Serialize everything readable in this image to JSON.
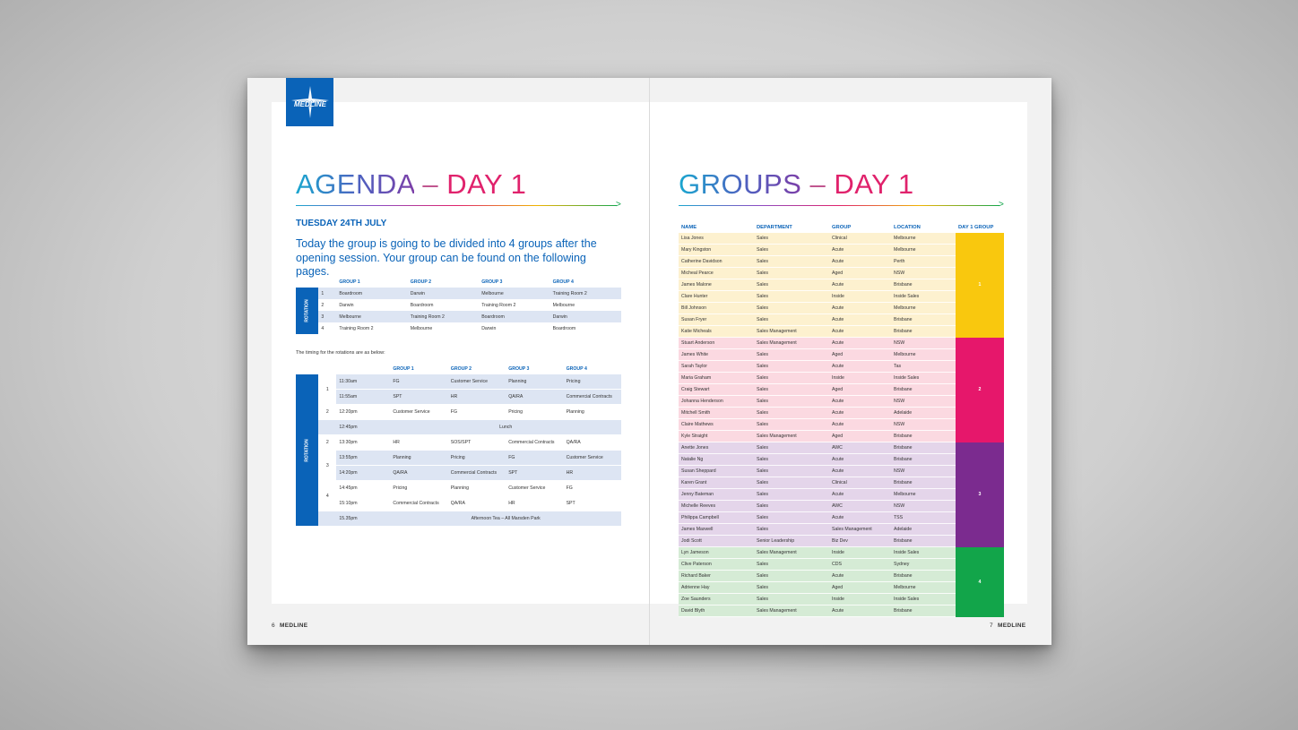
{
  "logo": {
    "text": "MEDLINE",
    "icon": "medline-star-icon",
    "color": "#0a63b8"
  },
  "left": {
    "title_a": "AGENDA",
    "title_sep": " – ",
    "title_b": "DAY 1",
    "date": "TUESDAY 24TH JULY",
    "intro": "Today the group is going to be divided into 4 groups after the opening session. Your group can be found on the following pages.",
    "rotation_label": "ROTATION",
    "rotation_table": {
      "headers": [
        "GROUP 1",
        "GROUP 2",
        "GROUP 3",
        "GROUP 4"
      ],
      "rows": [
        {
          "n": "1",
          "cells": [
            "Boardroom",
            "Darwin",
            "Melbourne",
            "Training Room 2"
          ]
        },
        {
          "n": "2",
          "cells": [
            "Darwin",
            "Boardroom",
            "Training Room 2",
            "Melbourne"
          ]
        },
        {
          "n": "3",
          "cells": [
            "Melbourne",
            "Training Room 2",
            "Boardroom",
            "Darwin"
          ]
        },
        {
          "n": "4",
          "cells": [
            "Training Room 2",
            "Melbourne",
            "Darwin",
            "Boardroom"
          ]
        }
      ]
    },
    "timing_note": "The timing for the rotations are as below:",
    "timing_table": {
      "headers": [
        "GROUP 1",
        "GROUP 2",
        "GROUP 3",
        "GROUP 4"
      ],
      "rows": [
        {
          "n": "1",
          "time": "11:30am",
          "cells": [
            "FG",
            "Customer Service",
            "Planning",
            "Pricing"
          ]
        },
        {
          "n": "",
          "time": "11:55am",
          "cells": [
            "SPT",
            "HR",
            "QA/RA",
            "Commercial Contracts"
          ]
        },
        {
          "n": "2",
          "time": "12:20pm",
          "cells": [
            "Customer Service",
            "FG",
            "Pricing",
            "Planning"
          ]
        },
        {
          "n": "",
          "time": "12:45pm",
          "span": "Lunch"
        },
        {
          "n": "2",
          "time": "13:30pm",
          "cells": [
            "HR",
            "SOS/SPT",
            "Commercial Contracts",
            "QA/RA"
          ]
        },
        {
          "n": "3",
          "time": "13:55pm",
          "cells": [
            "Planning",
            "Pricing",
            "FG",
            "Customer Service"
          ]
        },
        {
          "n": "",
          "time": "14:20pm",
          "cells": [
            "QA/RA",
            "Commercial Contracts",
            "SPT",
            "HR"
          ]
        },
        {
          "n": "4",
          "time": "14:45pm",
          "cells": [
            "Pricing",
            "Planning",
            "Customer Service",
            "FG"
          ]
        },
        {
          "n": "",
          "time": "15:10pm",
          "cells": [
            "Commercial Contracts",
            "QA/RA",
            "HR",
            "SPT"
          ]
        },
        {
          "n": "",
          "time": "15.35pm",
          "span": "Afternoon Tea – All Marsden Park"
        }
      ]
    },
    "footer_page": "6",
    "footer_brand": "MEDLINE"
  },
  "right": {
    "title_a": "GROUPS",
    "title_sep": " – ",
    "title_b": "DAY 1",
    "headers": [
      "NAME",
      "DEPARTMENT",
      "GROUP",
      "LOCATION",
      "DAY 1 GROUP"
    ],
    "groups": [
      {
        "label": "1",
        "color": "#f9c80e",
        "bg": "#fdf1cf",
        "members": [
          [
            "Lisa Jones",
            "Sales",
            "Clinical",
            "Melbourne"
          ],
          [
            "Mary Kingston",
            "Sales",
            "Acute",
            "Melbourne"
          ],
          [
            "Catherine Davidson",
            "Sales",
            "Acute",
            "Perth"
          ],
          [
            "Micheal Pearce",
            "Sales",
            "Aged",
            "NSW"
          ],
          [
            "James Malone",
            "Sales",
            "Acute",
            "Brisbane"
          ],
          [
            "Clare Hunter",
            "Sales",
            "Inside",
            "Inside Sales"
          ],
          [
            "Bill Johnson",
            "Sales",
            "Acute",
            "Melbourne"
          ],
          [
            "Susan Fryer",
            "Sales",
            "Acute",
            "Brisbane"
          ],
          [
            "Katie Micheals",
            "Sales Management",
            "Acute",
            "Brisbane"
          ]
        ]
      },
      {
        "label": "2",
        "color": "#e6176b",
        "bg": "#fbd9e1",
        "members": [
          [
            "Stuart Anderson",
            "Sales Management",
            "Acute",
            "NSW"
          ],
          [
            "James White",
            "Sales",
            "Aged",
            "Melbourne"
          ],
          [
            "Sarah Taylor",
            "Sales",
            "Acute",
            "Tas"
          ],
          [
            "Maria Graham",
            "Sales",
            "Inside",
            "Inside Sales"
          ],
          [
            "Craig Stewart",
            "Sales",
            "Aged",
            "Brisbane"
          ],
          [
            "Johanna Henderson",
            "Sales",
            "Acute",
            "NSW"
          ],
          [
            "Mitchell Smith",
            "Sales",
            "Acute",
            "Adelaide"
          ],
          [
            "Claire Mathews",
            "Sales",
            "Acute",
            "NSW"
          ],
          [
            "Kyle Straight",
            "Sales Management",
            "Aged",
            "Brisbane"
          ]
        ]
      },
      {
        "label": "3",
        "color": "#7b2b8f",
        "bg": "#e4d5ea",
        "members": [
          [
            "Anette Jones",
            "Sales",
            "AWC",
            "Brisbane"
          ],
          [
            "Natalie Ng",
            "Sales",
            "Acute",
            "Brisbane"
          ],
          [
            "Susan Sheppard",
            "Sales",
            "Acute",
            "NSW"
          ],
          [
            "Karen Grant",
            "Sales",
            "Clinical",
            "Brisbane"
          ],
          [
            "Jenny Bateman",
            "Sales",
            "Acute",
            "Melbourne"
          ],
          [
            "Michelle Reeves",
            "Sales",
            "AWC",
            "NSW"
          ],
          [
            "Philippa Campbell",
            "Sales",
            "Acute",
            "TSS"
          ],
          [
            "James Maxwell",
            "Sales",
            "Sales Management",
            "Adelaide"
          ],
          [
            "Jodi Scott",
            "Senior Leadership",
            "Biz Dev",
            "Brisbane"
          ]
        ]
      },
      {
        "label": "4",
        "color": "#12a54a",
        "bg": "#d5ebd5",
        "members": [
          [
            "Lyn Jameson",
            "Sales Management",
            "Inside",
            "Inside Sales"
          ],
          [
            "Clive Paterson",
            "Sales",
            "CDS",
            "Sydney"
          ],
          [
            "Richard Baker",
            "Sales",
            "Acute",
            "Brisbane"
          ],
          [
            "Adrienne Hay",
            "Sales",
            "Aged",
            "Melbourne"
          ],
          [
            "Zoe Saunders",
            "Sales",
            "Inside",
            "Inside Sales"
          ],
          [
            "David Blyth",
            "Sales Management",
            "Acute",
            "Brisbane"
          ]
        ]
      }
    ],
    "footer_page": "7",
    "footer_brand": "MEDLINE"
  }
}
